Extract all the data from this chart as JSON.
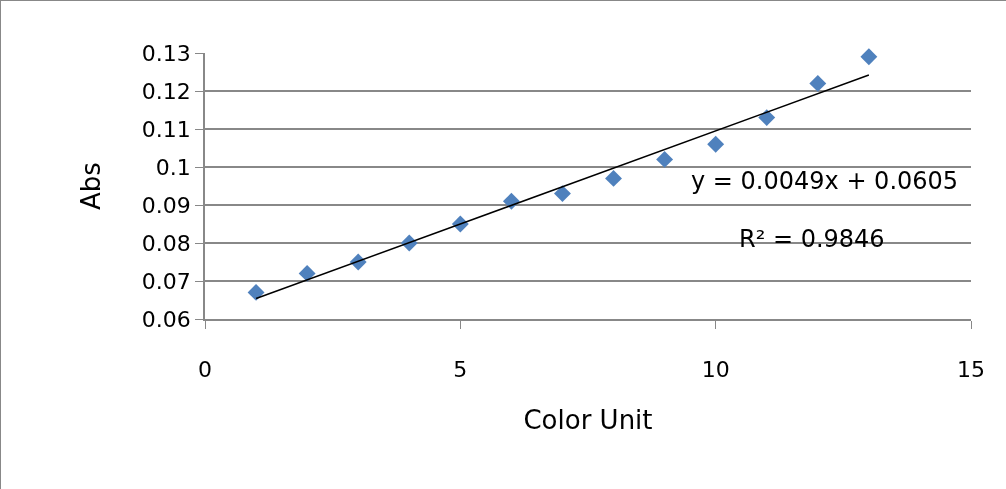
{
  "chart_data": {
    "type": "scatter",
    "xlabel": "Color Unit",
    "ylabel": "Abs",
    "x": [
      1,
      2,
      3,
      4,
      5,
      6,
      7,
      8,
      9,
      10,
      11,
      12,
      13
    ],
    "series": [
      {
        "color": "#4f81bd",
        "marker": "diamond",
        "values": [
          0.067,
          0.072,
          0.075,
          0.08,
          0.085,
          0.091,
          0.093,
          0.097,
          0.102,
          0.106,
          0.113,
          0.122,
          0.129
        ]
      },
      {
        "type": "line",
        "color": "#000000",
        "marker": "none",
        "line_style": "solid",
        "x": [
          1,
          13
        ],
        "values": [
          0.0654,
          0.1242
        ]
      }
    ],
    "xlim": [
      0,
      15
    ],
    "xticks": [
      0,
      5,
      10,
      15
    ],
    "ylim": [
      0.06,
      0.13
    ],
    "yticks": [
      0.06,
      0.07,
      0.08,
      0.09,
      0.1,
      0.11,
      0.12,
      0.13
    ],
    "grid": "y",
    "annotations": [
      "y = 0.0049x + 0.0605",
      "R² = 0.9846"
    ]
  }
}
